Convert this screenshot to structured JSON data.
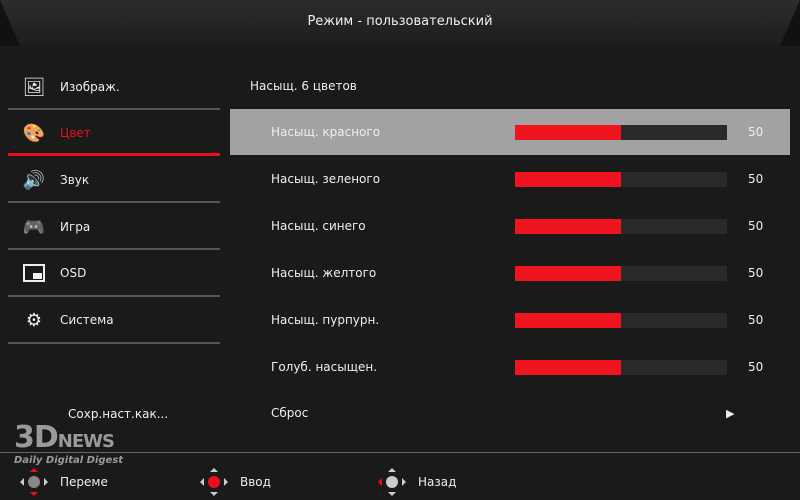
{
  "header": {
    "title": "Режим - пользовательский"
  },
  "sidebar": {
    "items": [
      {
        "label": "Изображ.",
        "icon": "image-icon",
        "active": false
      },
      {
        "label": "Цвет",
        "icon": "palette-icon",
        "active": true
      },
      {
        "label": "Звук",
        "icon": "speaker-icon",
        "active": false
      },
      {
        "label": "Игра",
        "icon": "gamepad-icon",
        "active": false
      },
      {
        "label": "OSD",
        "icon": "osd-window-icon",
        "active": false
      },
      {
        "label": "Система",
        "icon": "gear-icon",
        "active": false
      }
    ],
    "save_label": "Сохр.наст.как..."
  },
  "main": {
    "section": "Насыщ. 6 цветов",
    "rows": [
      {
        "label": "Насыщ. красного",
        "value": "50",
        "level": 50
      },
      {
        "label": "Насыщ. зеленого",
        "value": "50",
        "level": 50
      },
      {
        "label": "Насыщ. синего",
        "value": "50",
        "level": 50
      },
      {
        "label": "Насыщ. желтого",
        "value": "50",
        "level": 50
      },
      {
        "label": "Насыщ. пурпурн.",
        "value": "50",
        "level": 50
      },
      {
        "label": "Голуб. насыщен.",
        "value": "50",
        "level": 50
      }
    ],
    "reset_label": "Сброс"
  },
  "footer": {
    "move": "Переме",
    "enter": "Ввод",
    "back": "Назад"
  },
  "watermark": {
    "text": "3DNEWS",
    "tagline": "Daily Digital Digest"
  },
  "colors": {
    "accent": "#e8101e",
    "highlight": "#a2a2a2"
  }
}
